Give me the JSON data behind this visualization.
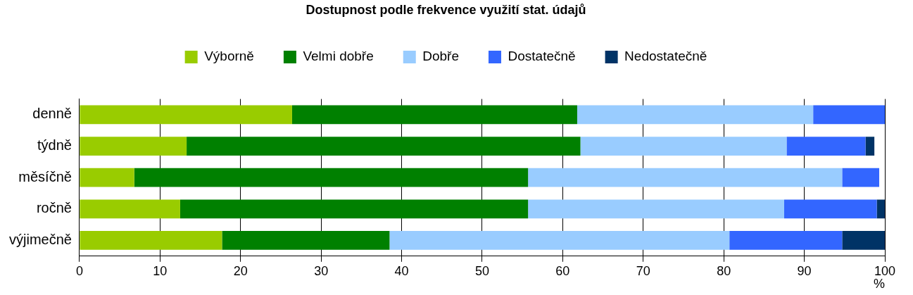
{
  "chart_data": {
    "type": "bar",
    "orientation": "horizontal",
    "stacked": true,
    "title": "Dostupnost podle frekvence využití stat. údajů",
    "xlabel": "%",
    "categories": [
      "denně",
      "týdně",
      "měsíčně",
      "ročně",
      "výjimečně"
    ],
    "series": [
      {
        "name": "Výborně",
        "color": "#99cc00",
        "values": [
          26.4,
          13.3,
          6.8,
          12.5,
          17.7
        ]
      },
      {
        "name": "Velmi dobře",
        "color": "#008000",
        "values": [
          35.4,
          48.9,
          48.9,
          43.2,
          20.8
        ]
      },
      {
        "name": "Dobře",
        "color": "#99ccff",
        "values": [
          29.3,
          25.6,
          39.0,
          31.8,
          42.2
        ]
      },
      {
        "name": "Dostatečně",
        "color": "#3366ff",
        "values": [
          8.9,
          9.8,
          4.6,
          11.5,
          14.0
        ]
      },
      {
        "name": "Nedostatečně",
        "color": "#003366",
        "values": [
          null,
          1.1,
          null,
          1.0,
          5.3
        ]
      }
    ],
    "xlim": [
      0,
      100
    ],
    "xticks": [
      0,
      10,
      20,
      30,
      40,
      50,
      60,
      70,
      80,
      90,
      100
    ],
    "grid": "x",
    "legend": "top"
  }
}
